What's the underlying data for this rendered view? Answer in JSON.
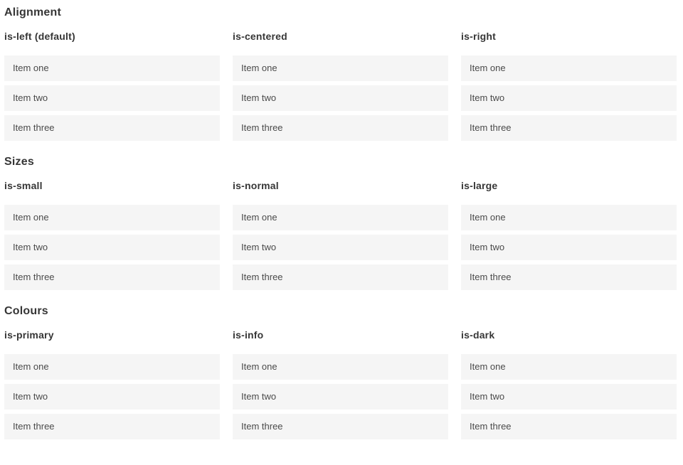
{
  "colors": {
    "primary": "#00d1b2",
    "info": "#3298dc",
    "dark": "#363636",
    "item_background": "#f5f5f5",
    "item_text": "#4a4a4a",
    "heading_text": "#363636",
    "colored_item_text": "#ffffff"
  },
  "sections": [
    {
      "title": "Alignment",
      "groups": [
        {
          "heading": "is-left (default)",
          "items": [
            "Item one",
            "Item two",
            "Item three"
          ]
        },
        {
          "heading": "is-centered",
          "items": [
            "Item one",
            "Item two",
            "Item three"
          ]
        },
        {
          "heading": "is-right",
          "items": [
            "Item one",
            "Item two",
            "Item three"
          ]
        }
      ]
    },
    {
      "title": "Sizes",
      "groups": [
        {
          "heading": "is-small",
          "items": [
            "Item one",
            "Item two",
            "Item three"
          ]
        },
        {
          "heading": "is-normal",
          "items": [
            "Item one",
            "Item two",
            "Item three"
          ]
        },
        {
          "heading": "is-large",
          "items": [
            "Item one",
            "Item two",
            "Item three"
          ]
        }
      ]
    },
    {
      "title": "Colours",
      "groups": [
        {
          "heading": "is-primary",
          "items": [
            "Item one",
            "Item two",
            "Item three"
          ]
        },
        {
          "heading": "is-info",
          "items": [
            "Item one",
            "Item two",
            "Item three"
          ]
        },
        {
          "heading": "is-dark",
          "items": [
            "Item one",
            "Item two",
            "Item three"
          ]
        }
      ]
    }
  ]
}
